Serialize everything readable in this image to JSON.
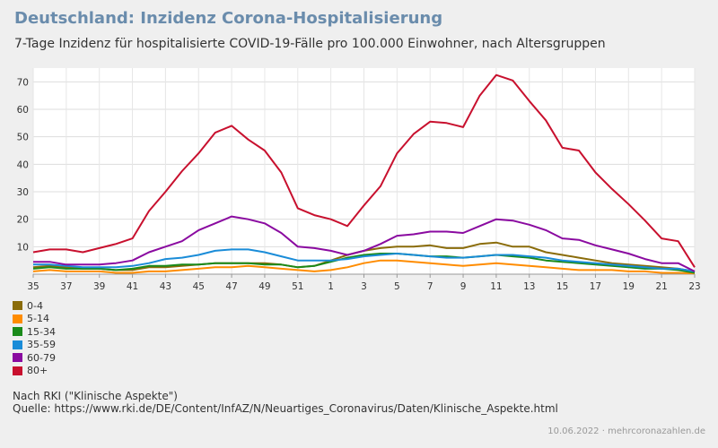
{
  "header": {
    "title": "Deutschland: Inzidenz Corona-Hospitalisierung",
    "subtitle": "7-Tage Inzidenz für hospitalisierte COVID-19-Fälle pro 100.000 Einwohner, nach Altersgruppen"
  },
  "source": {
    "note": "Nach RKI (\"Klinische Aspekte\")",
    "url": "Quelle: https://www.rki.de/DE/Content/InfAZ/N/Neuartiges_Coronavirus/Daten/Klinische_Aspekte.html"
  },
  "footer": {
    "date": "10.06.2022",
    "separator": "·",
    "site": "mehrcoronazahlen.de"
  },
  "chart_data": {
    "type": "line",
    "title": "Deutschland: Inzidenz Corona-Hospitalisierung",
    "subtitle": "7-Tage Inzidenz für hospitalisierte COVID-19-Fälle pro 100.000 Einwohner, nach Altersgruppen",
    "xlabel": "",
    "ylabel": "",
    "x_ticks": [
      "35",
      "37",
      "39",
      "41",
      "43",
      "45",
      "47",
      "49",
      "51",
      "1",
      "3",
      "5",
      "7",
      "9",
      "11",
      "13",
      "15",
      "17",
      "19",
      "21",
      "23"
    ],
    "y_ticks": [
      10,
      20,
      30,
      40,
      50,
      60,
      70
    ],
    "ylim": [
      0,
      75
    ],
    "grid": true,
    "legend_position": "bottom-left",
    "x_weeks": [
      "35",
      "36",
      "37",
      "38",
      "39",
      "40",
      "41",
      "42",
      "43",
      "44",
      "45",
      "46",
      "47",
      "48",
      "49",
      "50",
      "51",
      "52",
      "1",
      "2",
      "3",
      "4",
      "5",
      "6",
      "7",
      "8",
      "9",
      "10",
      "11",
      "12",
      "13",
      "14",
      "15",
      "16",
      "17",
      "18",
      "19",
      "20",
      "21",
      "22",
      "23"
    ],
    "series": [
      {
        "name": "0-4",
        "color": "#8a6c0a",
        "values": [
          2.5,
          3,
          2.5,
          2,
          2,
          1.5,
          1.5,
          2.5,
          2.5,
          3,
          3.5,
          4,
          4,
          4,
          4,
          3.5,
          2.5,
          3,
          5,
          7,
          8.5,
          9.5,
          10,
          10,
          10.5,
          9.5,
          9.5,
          11,
          11.5,
          10,
          10,
          8,
          7,
          6,
          5,
          4,
          3.5,
          3,
          2.5,
          2,
          1
        ]
      },
      {
        "name": "5-14",
        "color": "#ff8c00",
        "values": [
          1,
          1.5,
          1,
          1,
          1,
          0.5,
          0.5,
          1,
          1,
          1.5,
          2,
          2.5,
          2.5,
          3,
          2.5,
          2,
          1.5,
          1,
          1.5,
          2.5,
          4,
          5,
          5,
          4.5,
          4,
          3.5,
          3,
          3.5,
          4,
          3.5,
          3,
          2.5,
          2,
          1.5,
          1.5,
          1.5,
          1,
          1,
          0.5,
          0.5,
          0.3
        ]
      },
      {
        "name": "15-34",
        "color": "#1a8a1a",
        "values": [
          2,
          2.5,
          2,
          2,
          2,
          1.5,
          2,
          3,
          3,
          3.5,
          3.5,
          4,
          4,
          4,
          3.5,
          3.5,
          2.5,
          3,
          4.5,
          6,
          7,
          7.5,
          7.5,
          7,
          6.5,
          6.5,
          6,
          6.5,
          7,
          6.5,
          6,
          5,
          4.5,
          4,
          3.5,
          3,
          2.5,
          2,
          2,
          1.5,
          0.5
        ]
      },
      {
        "name": "35-59",
        "color": "#1a8cd8",
        "values": [
          3.5,
          3.5,
          3,
          2.5,
          2.5,
          2.5,
          3,
          4,
          5.5,
          6,
          7,
          8.5,
          9,
          9,
          8,
          6.5,
          5,
          5,
          5,
          5.5,
          6.5,
          7,
          7.5,
          7,
          6.5,
          6,
          6,
          6.5,
          7,
          7,
          6.5,
          6,
          5,
          4.5,
          4,
          3.5,
          3,
          2.5,
          2,
          2,
          1
        ]
      },
      {
        "name": "60-79",
        "color": "#8a0aa0",
        "values": [
          4.5,
          4.5,
          3.5,
          3.5,
          3.5,
          4,
          5,
          8,
          10,
          12,
          16,
          18.5,
          21,
          20,
          18.5,
          15,
          10,
          9.5,
          8.5,
          7,
          8.5,
          11,
          14,
          14.5,
          15.5,
          15.5,
          15,
          17.5,
          20,
          19.5,
          18,
          16,
          13,
          12.5,
          10.5,
          9,
          7.5,
          5.5,
          4,
          4,
          1
        ]
      },
      {
        "name": "80+",
        "color": "#c8102e",
        "values": [
          8,
          9,
          9,
          8,
          9.5,
          11,
          13,
          23,
          30,
          37.5,
          44,
          51.5,
          54,
          49,
          45,
          37,
          24,
          21.5,
          20,
          17.5,
          25,
          32,
          44,
          51,
          55.5,
          55,
          53.5,
          65,
          72.5,
          70.5,
          63,
          56,
          46,
          45,
          37,
          31,
          25.5,
          19.5,
          13,
          12,
          2.5
        ]
      }
    ]
  }
}
